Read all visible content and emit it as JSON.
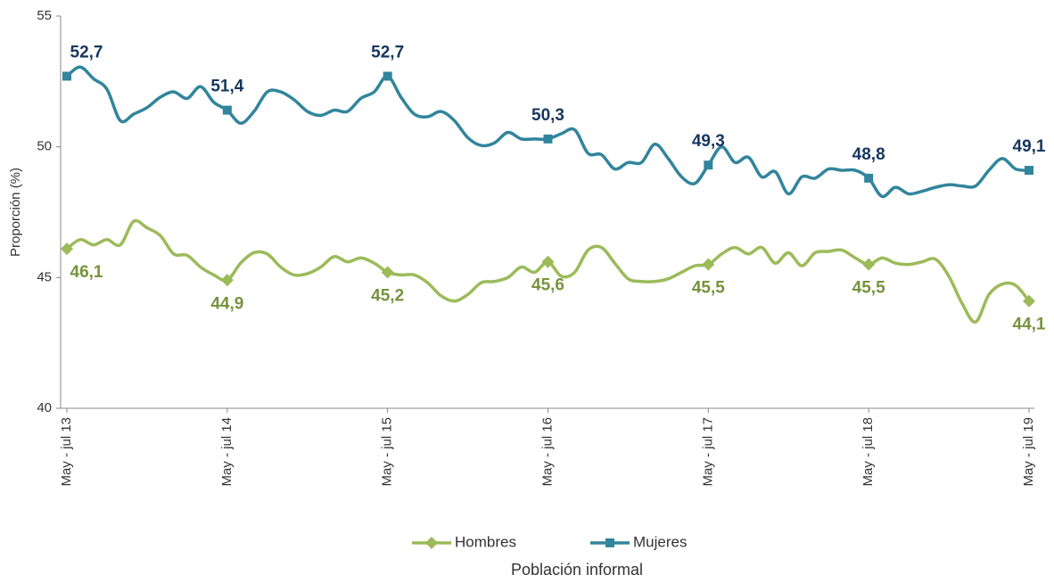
{
  "chart_data": {
    "type": "line",
    "y_label": "Proporción (%)",
    "x_label": "Población informal",
    "categories": [
      "May - jul 13",
      null,
      null,
      null,
      null,
      null,
      null,
      null,
      null,
      null,
      null,
      null,
      "May - jul 14",
      null,
      null,
      null,
      null,
      null,
      null,
      null,
      null,
      null,
      null,
      null,
      "May - jul 15",
      null,
      null,
      null,
      null,
      null,
      null,
      null,
      null,
      null,
      null,
      null,
      "May - jul 16",
      null,
      null,
      null,
      null,
      null,
      null,
      null,
      null,
      null,
      null,
      null,
      "May - jul 17",
      null,
      null,
      null,
      null,
      null,
      null,
      null,
      null,
      null,
      null,
      null,
      "May - jul 18",
      null,
      null,
      null,
      null,
      null,
      null,
      null,
      null,
      null,
      null,
      null,
      "May - jul 19"
    ],
    "ylim": [
      40,
      55
    ],
    "yticks": [
      40,
      45,
      50,
      55
    ],
    "legend": "bottom",
    "series": [
      {
        "name": "Hombres",
        "color": "#9bbb59",
        "label_color": "#77933c",
        "marker": "diamond",
        "values": [
          46.1,
          46.45,
          46.25,
          46.45,
          46.25,
          47.15,
          46.9,
          46.6,
          45.9,
          45.85,
          45.4,
          45.1,
          44.9,
          45.55,
          45.95,
          45.9,
          45.4,
          45.1,
          45.15,
          45.4,
          45.8,
          45.6,
          45.75,
          45.55,
          45.2,
          45.1,
          45.1,
          44.8,
          44.3,
          44.1,
          44.35,
          44.8,
          44.85,
          45.0,
          45.4,
          45.2,
          45.6,
          45.05,
          45.2,
          46.05,
          46.15,
          45.55,
          44.95,
          44.85,
          44.85,
          44.95,
          45.2,
          45.45,
          45.5,
          45.9,
          46.15,
          45.9,
          46.15,
          45.55,
          45.95,
          45.45,
          45.95,
          46.0,
          46.05,
          45.75,
          45.5,
          45.75,
          45.55,
          45.5,
          45.6,
          45.7,
          45.05,
          44.0,
          43.3,
          44.35,
          44.75,
          44.7,
          44.1
        ],
        "value_labels": [
          "46,1",
          null,
          null,
          null,
          null,
          null,
          null,
          null,
          null,
          null,
          null,
          null,
          "44,9",
          null,
          null,
          null,
          null,
          null,
          null,
          null,
          null,
          null,
          null,
          null,
          "45,2",
          null,
          null,
          null,
          null,
          null,
          null,
          null,
          null,
          null,
          null,
          null,
          "45,6",
          null,
          null,
          null,
          null,
          null,
          null,
          null,
          null,
          null,
          null,
          null,
          "45,5",
          null,
          null,
          null,
          null,
          null,
          null,
          null,
          null,
          null,
          null,
          null,
          "45,5",
          null,
          null,
          null,
          null,
          null,
          null,
          null,
          null,
          null,
          null,
          null,
          "44,1"
        ]
      },
      {
        "name": "Mujeres",
        "color": "#31859c",
        "label_color": "#17375e",
        "marker": "square",
        "values": [
          52.7,
          53.05,
          52.6,
          52.2,
          51.0,
          51.25,
          51.5,
          51.9,
          52.1,
          51.85,
          52.3,
          51.7,
          51.4,
          50.9,
          51.35,
          52.1,
          52.1,
          51.8,
          51.35,
          51.2,
          51.4,
          51.35,
          51.85,
          52.1,
          52.7,
          51.9,
          51.25,
          51.15,
          51.35,
          51.0,
          50.35,
          50.05,
          50.15,
          50.55,
          50.3,
          50.3,
          50.3,
          50.5,
          50.65,
          49.75,
          49.7,
          49.15,
          49.4,
          49.4,
          50.1,
          49.55,
          48.85,
          48.6,
          49.3,
          50.0,
          49.4,
          49.6,
          48.85,
          49.05,
          48.2,
          48.85,
          48.8,
          49.15,
          49.1,
          49.1,
          48.8,
          48.1,
          48.45,
          48.2,
          48.3,
          48.45,
          48.55,
          48.5,
          48.5,
          49.1,
          49.55,
          49.15,
          49.1
        ],
        "value_labels": [
          "52,7",
          null,
          null,
          null,
          null,
          null,
          null,
          null,
          null,
          null,
          null,
          null,
          "51,4",
          null,
          null,
          null,
          null,
          null,
          null,
          null,
          null,
          null,
          null,
          null,
          "52,7",
          null,
          null,
          null,
          null,
          null,
          null,
          null,
          null,
          null,
          null,
          null,
          "50,3",
          null,
          null,
          null,
          null,
          null,
          null,
          null,
          null,
          null,
          null,
          null,
          "49,3",
          null,
          null,
          null,
          null,
          null,
          null,
          null,
          null,
          null,
          null,
          null,
          "48,8",
          null,
          null,
          null,
          null,
          null,
          null,
          null,
          null,
          null,
          null,
          null,
          "49,1"
        ]
      }
    ]
  }
}
